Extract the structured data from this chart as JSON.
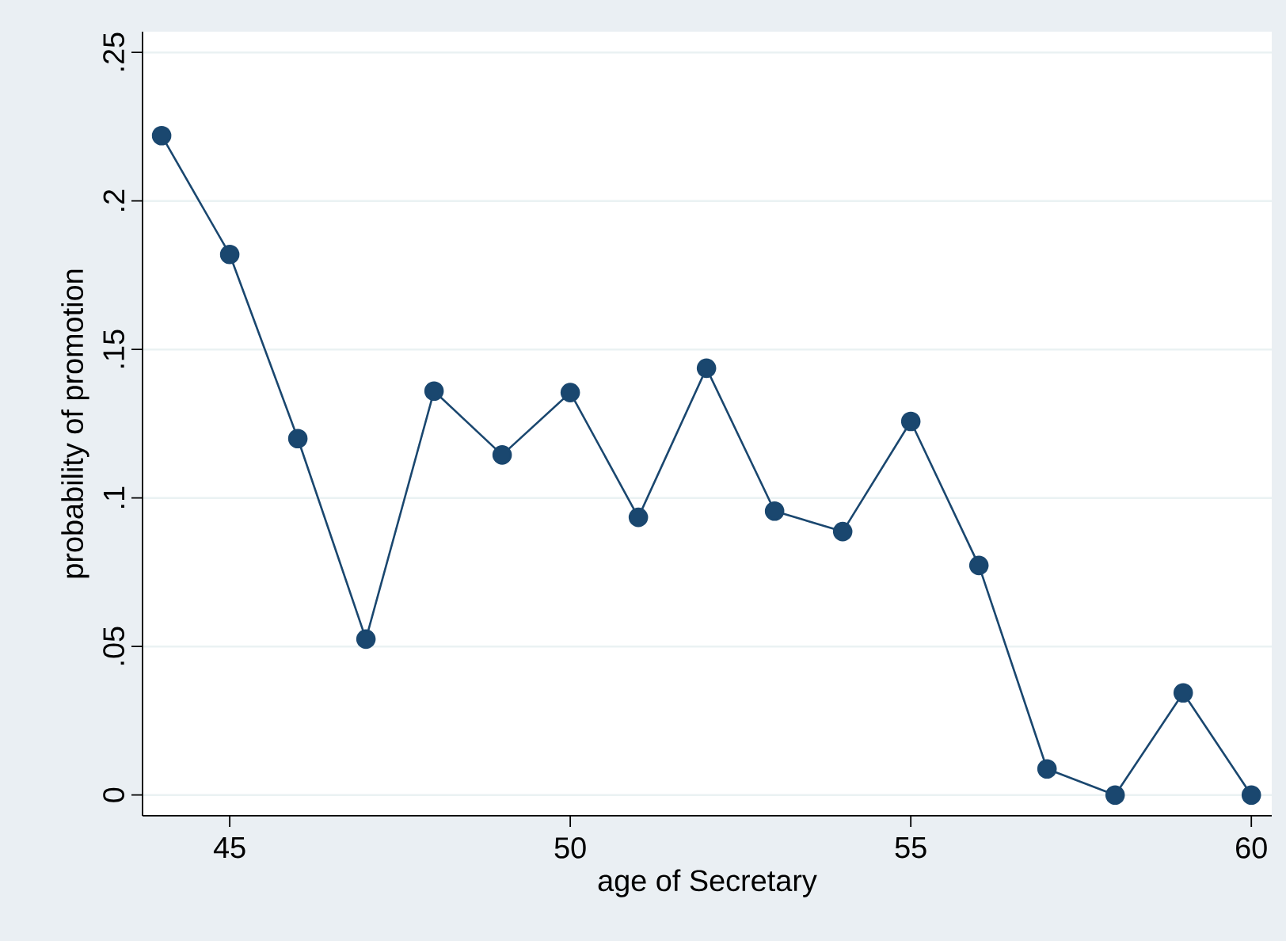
{
  "chart_data": {
    "type": "line",
    "xlabel": "age of Secretary",
    "ylabel": "probability of promotion",
    "x": [
      44,
      45,
      46,
      47,
      48,
      49,
      50,
      51,
      52,
      53,
      54,
      55,
      56,
      57,
      58,
      59,
      60
    ],
    "series": [
      {
        "color": "#1a476f",
        "values": [
          0.222,
          0.182,
          0.12,
          0.0525,
          0.136,
          0.1145,
          0.1355,
          0.0935,
          0.1437,
          0.0956,
          0.0887,
          0.1258,
          0.0773,
          0.0088,
          0,
          0.0344,
          0
        ]
      }
    ],
    "xlim": [
      43.72,
      60.3
    ],
    "ylim": [
      -0.007,
      0.257
    ],
    "xticks": [
      45,
      50,
      55,
      60
    ],
    "yticks": [
      0,
      {
        "value": 0.05,
        "label": ".05"
      },
      {
        "value": 0.1,
        "label": ".1"
      },
      {
        "value": 0.15,
        "label": ".15"
      },
      {
        "value": 0.2,
        "label": ".2"
      },
      {
        "value": 0.25,
        "label": ".25"
      }
    ],
    "grid": "y",
    "marker": "circle",
    "line_style": "solid"
  }
}
